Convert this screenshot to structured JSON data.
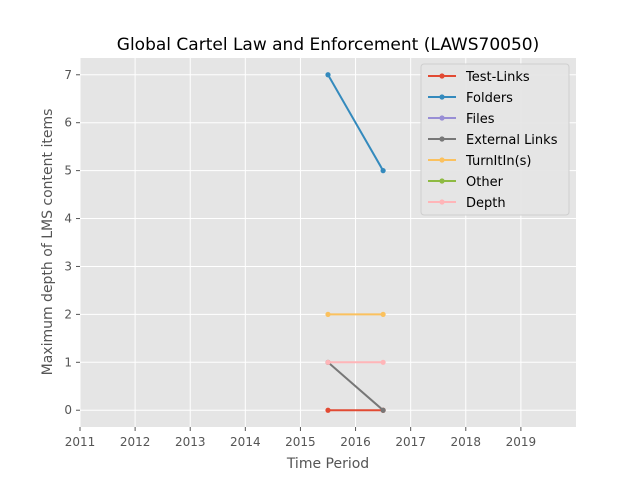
{
  "chart_data": {
    "type": "line",
    "title": "Global Cartel Law and Enforcement (LAWS70050)",
    "xlabel": "Time Period",
    "ylabel": "Maximum depth of LMS content items",
    "xlim": [
      2011,
      2020
    ],
    "ylim": [
      -0.35,
      7.35
    ],
    "xticks": [
      2011,
      2012,
      2013,
      2014,
      2015,
      2016,
      2017,
      2018,
      2019
    ],
    "yticks": [
      0,
      1,
      2,
      3,
      4,
      5,
      6,
      7
    ],
    "grid": true,
    "legend_position": "top-right",
    "series": [
      {
        "name": "Test-Links",
        "color": "#E24A33",
        "x": [
          2015.5,
          2016.5
        ],
        "y": [
          0,
          0
        ]
      },
      {
        "name": "Folders",
        "color": "#348ABD",
        "x": [
          2015.5,
          2016.5
        ],
        "y": [
          7,
          5
        ]
      },
      {
        "name": "Files",
        "color": "#988ED5",
        "x": [],
        "y": []
      },
      {
        "name": "External Links",
        "color": "#777777",
        "x": [
          2015.5,
          2016.5
        ],
        "y": [
          1,
          0
        ]
      },
      {
        "name": "TurnItIn(s)",
        "color": "#FBC15E",
        "x": [
          2015.5,
          2016.5
        ],
        "y": [
          2,
          2
        ]
      },
      {
        "name": "Other",
        "color": "#8EBA42",
        "x": [],
        "y": []
      },
      {
        "name": "Depth",
        "color": "#FFB5B8",
        "x": [
          2015.5,
          2016.5
        ],
        "y": [
          1,
          1
        ]
      }
    ]
  }
}
